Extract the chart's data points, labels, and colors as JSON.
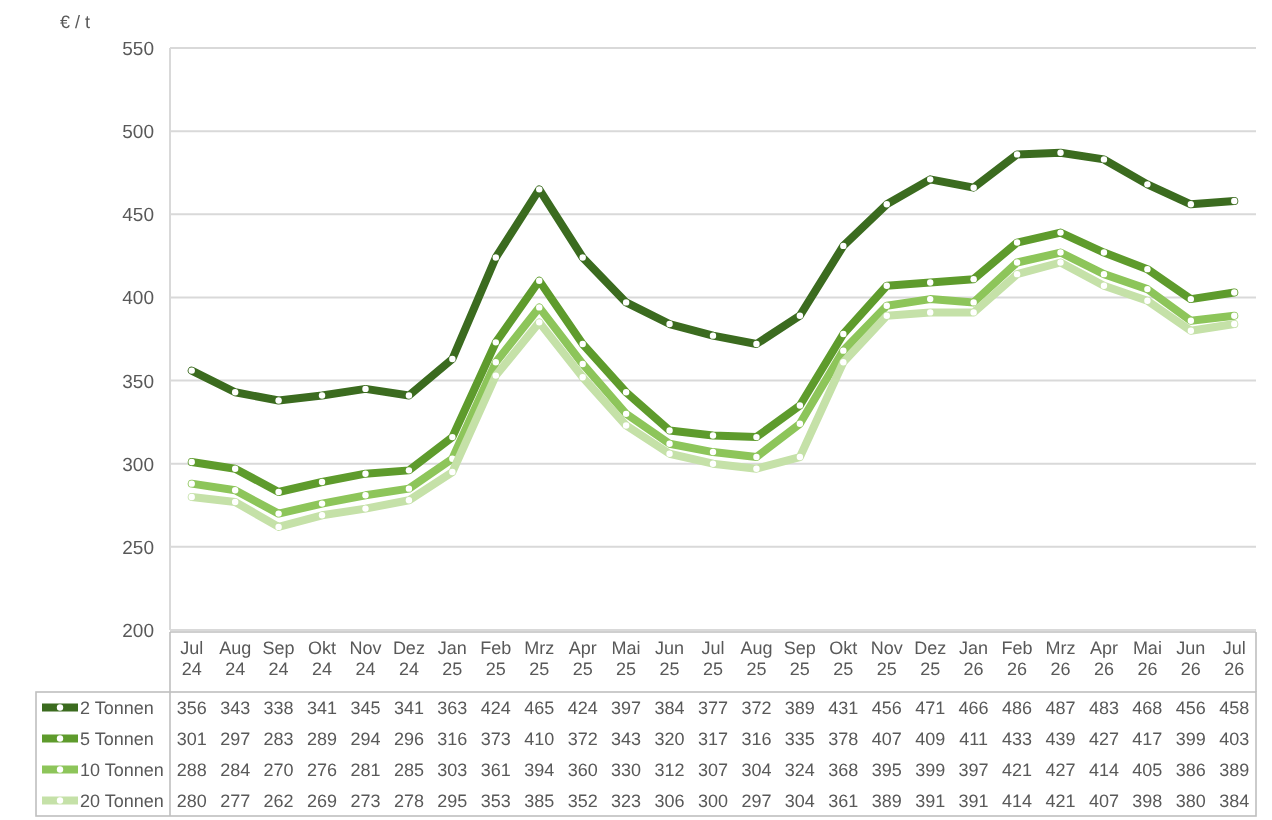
{
  "chart_data": {
    "type": "line",
    "ylabel": "€ / t",
    "categories": [
      "Jul 24",
      "Aug 24",
      "Sep 24",
      "Okt 24",
      "Nov 24",
      "Dez 24",
      "Jan 25",
      "Feb 25",
      "Mrz 25",
      "Apr 25",
      "Mai 25",
      "Jun 25",
      "Jul 25",
      "Aug 25",
      "Sep 25",
      "Okt 25",
      "Nov 25",
      "Dez 25",
      "Jan 26",
      "Feb 26",
      "Mrz 26",
      "Apr 26",
      "Mai 26",
      "Jun 26",
      "Jul 26"
    ],
    "series": [
      {
        "name": "2 Tonnen",
        "color": "#3b6b1f",
        "values": [
          356,
          343,
          338,
          341,
          345,
          341,
          363,
          424,
          465,
          424,
          397,
          384,
          377,
          372,
          389,
          431,
          456,
          471,
          466,
          486,
          487,
          483,
          468,
          456,
          458
        ]
      },
      {
        "name": "5 Tonnen",
        "color": "#5e9b2c",
        "values": [
          301,
          297,
          283,
          289,
          294,
          296,
          316,
          373,
          410,
          372,
          343,
          320,
          317,
          316,
          335,
          378,
          407,
          409,
          411,
          433,
          439,
          427,
          417,
          399,
          403
        ]
      },
      {
        "name": "10 Tonnen",
        "color": "#8dc55a",
        "values": [
          288,
          284,
          270,
          276,
          281,
          285,
          303,
          361,
          394,
          360,
          330,
          312,
          307,
          304,
          324,
          368,
          395,
          399,
          397,
          421,
          427,
          414,
          405,
          386,
          389
        ]
      },
      {
        "name": "20 Tonnen",
        "color": "#c5e1a8",
        "values": [
          280,
          277,
          262,
          269,
          273,
          278,
          295,
          353,
          385,
          352,
          323,
          306,
          300,
          297,
          304,
          361,
          389,
          391,
          391,
          414,
          421,
          407,
          398,
          380,
          384
        ]
      }
    ],
    "ylim": [
      200,
      550
    ],
    "yticks": [
      200,
      250,
      300,
      350,
      400,
      450,
      500,
      550
    ],
    "grid": "y",
    "legend": "bottom",
    "marker": "circle",
    "line_style": "solid",
    "data_labels": true
  }
}
